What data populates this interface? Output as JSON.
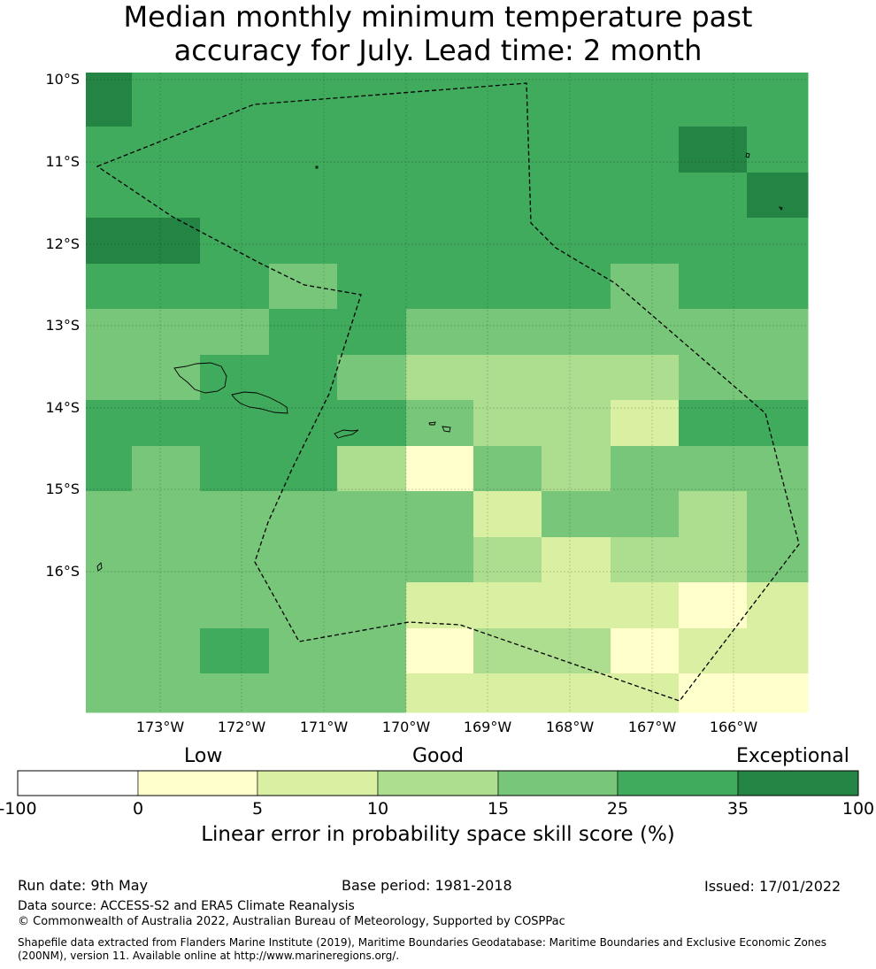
{
  "title": {
    "line1": "Median monthly minimum temperature past",
    "line2": "accuracy for July. Lead time: 2 month"
  },
  "map": {
    "lat_labels": [
      "10°S",
      "11°S",
      "12°S",
      "13°S",
      "14°S",
      "15°S",
      "16°S"
    ],
    "lon_labels": [
      "173°W",
      "172°W",
      "171°W",
      "170°W",
      "169°W",
      "168°W",
      "167°W",
      "166°W"
    ],
    "grid": [
      [
        5,
        4,
        4,
        4,
        4,
        4,
        4,
        4,
        4,
        4,
        4
      ],
      [
        4,
        4,
        4,
        4,
        4,
        4,
        4,
        4,
        4,
        5,
        4
      ],
      [
        4,
        4,
        4,
        4,
        4,
        4,
        4,
        4,
        4,
        4,
        5
      ],
      [
        5,
        5,
        4,
        4,
        4,
        4,
        4,
        4,
        4,
        4,
        4
      ],
      [
        4,
        4,
        4,
        3,
        4,
        4,
        4,
        4,
        3,
        4,
        4
      ],
      [
        3,
        3,
        3,
        4,
        4,
        3,
        3,
        3,
        3,
        3,
        3
      ],
      [
        3,
        3,
        4,
        4,
        3,
        2,
        2,
        2,
        2,
        3,
        3
      ],
      [
        4,
        4,
        4,
        4,
        4,
        3,
        2,
        2,
        1,
        4,
        4
      ],
      [
        4,
        3,
        4,
        4,
        2,
        0,
        3,
        2,
        3,
        3,
        3
      ],
      [
        3,
        3,
        3,
        3,
        3,
        3,
        1,
        3,
        3,
        2,
        3
      ],
      [
        3,
        3,
        3,
        3,
        3,
        3,
        2,
        1,
        2,
        2,
        3
      ],
      [
        3,
        3,
        3,
        3,
        3,
        1,
        1,
        1,
        1,
        0,
        1
      ],
      [
        3,
        3,
        4,
        3,
        3,
        0,
        2,
        2,
        0,
        1,
        1
      ],
      [
        3,
        3,
        3,
        3,
        3,
        1,
        1,
        1,
        1,
        0,
        0
      ]
    ],
    "palette": [
      "#ffffcc",
      "#d9f0a3",
      "#addd8e",
      "#78c679",
      "#41ab5d",
      "#238443"
    ]
  },
  "colorbar": {
    "categories": [
      "Low",
      "Good",
      "Exceptional"
    ],
    "ticks": [
      "-100",
      "0",
      "5",
      "10",
      "15",
      "25",
      "35",
      "100"
    ],
    "colors": [
      "#ffffff",
      "#ffffcc",
      "#d9f0a3",
      "#addd8e",
      "#78c679",
      "#41ab5d",
      "#238443"
    ],
    "label": "Linear error in probability space skill score (%)"
  },
  "footer": {
    "run_date": "Run date: 9th May",
    "base_period": "Base period: 1981-2018",
    "issued": "Issued: 17/01/2022",
    "data_source": "Data source: ACCESS-S2 and ERA5 Climate Reanalysis",
    "copyright": "© Commonwealth of Australia 2022, Australian Bureau of Meteorology, Supported by COSPPac",
    "shapefile_line1": "Shapefile data extracted from Flanders Marine Institute (2019), Maritime Boundaries Geodatabase: Maritime Boundaries and Exclusive Economic Zones",
    "shapefile_line2": "(200NM), version 11. Available online at http://www.marineregions.org/."
  }
}
